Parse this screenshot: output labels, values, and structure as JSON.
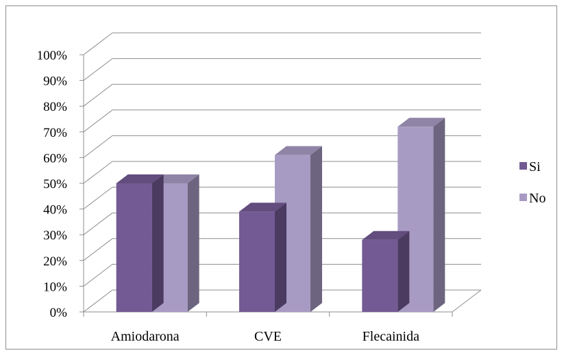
{
  "chart_data": {
    "type": "bar",
    "title": "",
    "xlabel": "",
    "ylabel": "",
    "categories": [
      "Amiodarona",
      "CVE",
      "Flecainida"
    ],
    "series": [
      {
        "name": "Si",
        "values": [
          50,
          39,
          28
        ],
        "color": "#735a94"
      },
      {
        "name": "No",
        "values": [
          50,
          61,
          72
        ],
        "color": "#a89bc3"
      }
    ],
    "ylim": [
      0,
      100
    ],
    "y_ticks": [
      "0%",
      "10%",
      "20%",
      "30%",
      "40%",
      "50%",
      "60%",
      "70%",
      "80%",
      "90%",
      "100%"
    ],
    "grid": true,
    "legend_position": "right",
    "style": "3d-clustered-column"
  }
}
